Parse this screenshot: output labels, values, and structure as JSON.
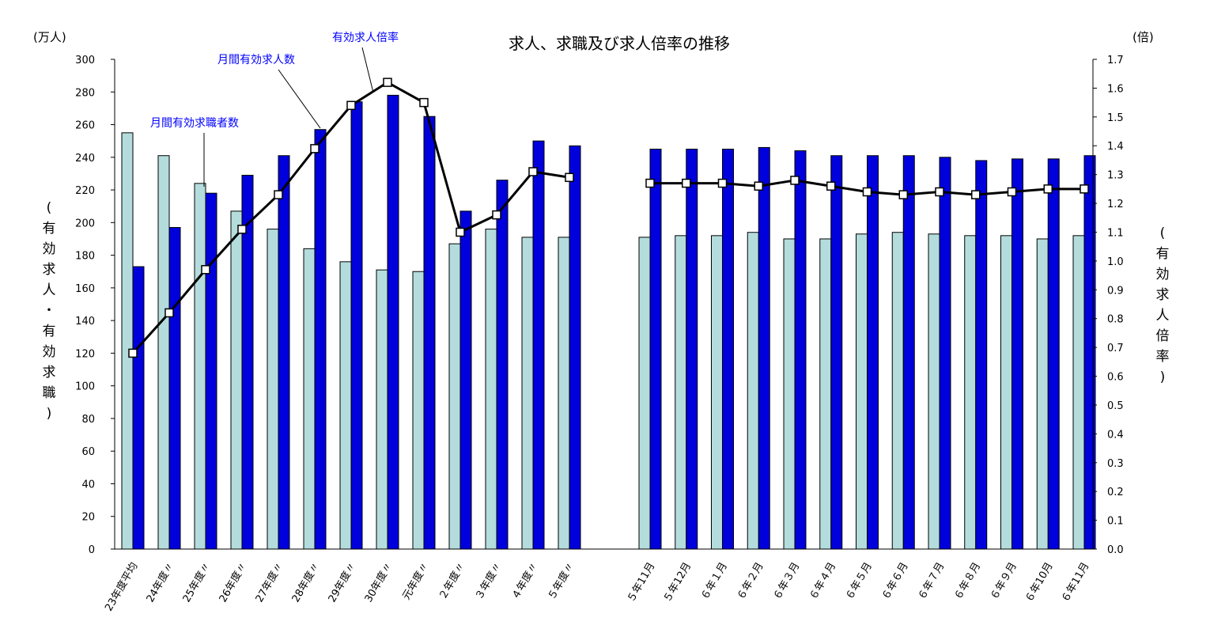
{
  "chart_data": {
    "type": "bar",
    "title": "求人、求職及び求人倍率の推移",
    "left_unit": "(万人)",
    "right_unit": "(倍)",
    "ylabel_left": "(有効求人・有効求職)",
    "ylabel_right": "(有効求人倍率)",
    "ylim": [
      0,
      300
    ],
    "y2lim": [
      0,
      1.7
    ],
    "y_ticks": [
      "0",
      "20",
      "40",
      "60",
      "80",
      "100",
      "120",
      "140",
      "160",
      "180",
      "200",
      "220",
      "240",
      "260",
      "280",
      "300"
    ],
    "y2_ticks": [
      "0.0",
      "0.1",
      "0.2",
      "0.3",
      "0.4",
      "0.5",
      "0.6",
      "0.7",
      "0.8",
      "0.9",
      "1.0",
      "1.1",
      "1.2",
      "1.3",
      "1.4",
      "1.5",
      "1.6",
      "1.7"
    ],
    "categories": [
      "23年度平均",
      "24年度〃",
      "25年度〃",
      "26年度〃",
      "27年度〃",
      "28年度〃",
      "29年度〃",
      "30年度〃",
      "元年度〃",
      "２年度〃",
      "３年度〃",
      "４年度〃",
      "５年度〃",
      "５年11月",
      "５年12月",
      "６年１月",
      "６年２月",
      "６年３月",
      "６年４月",
      "６年５月",
      "６年６月",
      "６年７月",
      "６年８月",
      "６年９月",
      "６年10月",
      "６年11月"
    ],
    "series": [
      {
        "name": "月間有効求職者数",
        "type": "bar",
        "color": "#b4dcdc",
        "values": [
          255,
          241,
          224,
          207,
          196,
          184,
          176,
          171,
          170,
          187,
          196,
          191,
          191,
          191,
          192,
          192,
          194,
          190,
          190,
          193,
          194,
          193,
          192,
          192,
          190,
          192
        ]
      },
      {
        "name": "月間有効求人数",
        "type": "bar",
        "color": "#0000dc",
        "values": [
          173,
          197,
          218,
          229,
          241,
          257,
          274,
          278,
          265,
          207,
          226,
          250,
          247,
          245,
          245,
          245,
          246,
          244,
          241,
          241,
          241,
          240,
          238,
          239,
          239,
          241
        ]
      },
      {
        "name": "有効求人倍率",
        "type": "line",
        "axis": "right",
        "color": "#000000",
        "values": [
          0.68,
          0.82,
          0.97,
          1.11,
          1.23,
          1.39,
          1.54,
          1.62,
          1.55,
          1.1,
          1.16,
          1.31,
          1.29,
          1.27,
          1.27,
          1.27,
          1.26,
          1.28,
          1.26,
          1.24,
          1.23,
          1.24,
          1.23,
          1.24,
          1.25,
          1.25
        ]
      }
    ],
    "annotations": [
      "月間有効求職者数",
      "月間有効求人数",
      "有効求人倍率"
    ],
    "grid": false
  }
}
